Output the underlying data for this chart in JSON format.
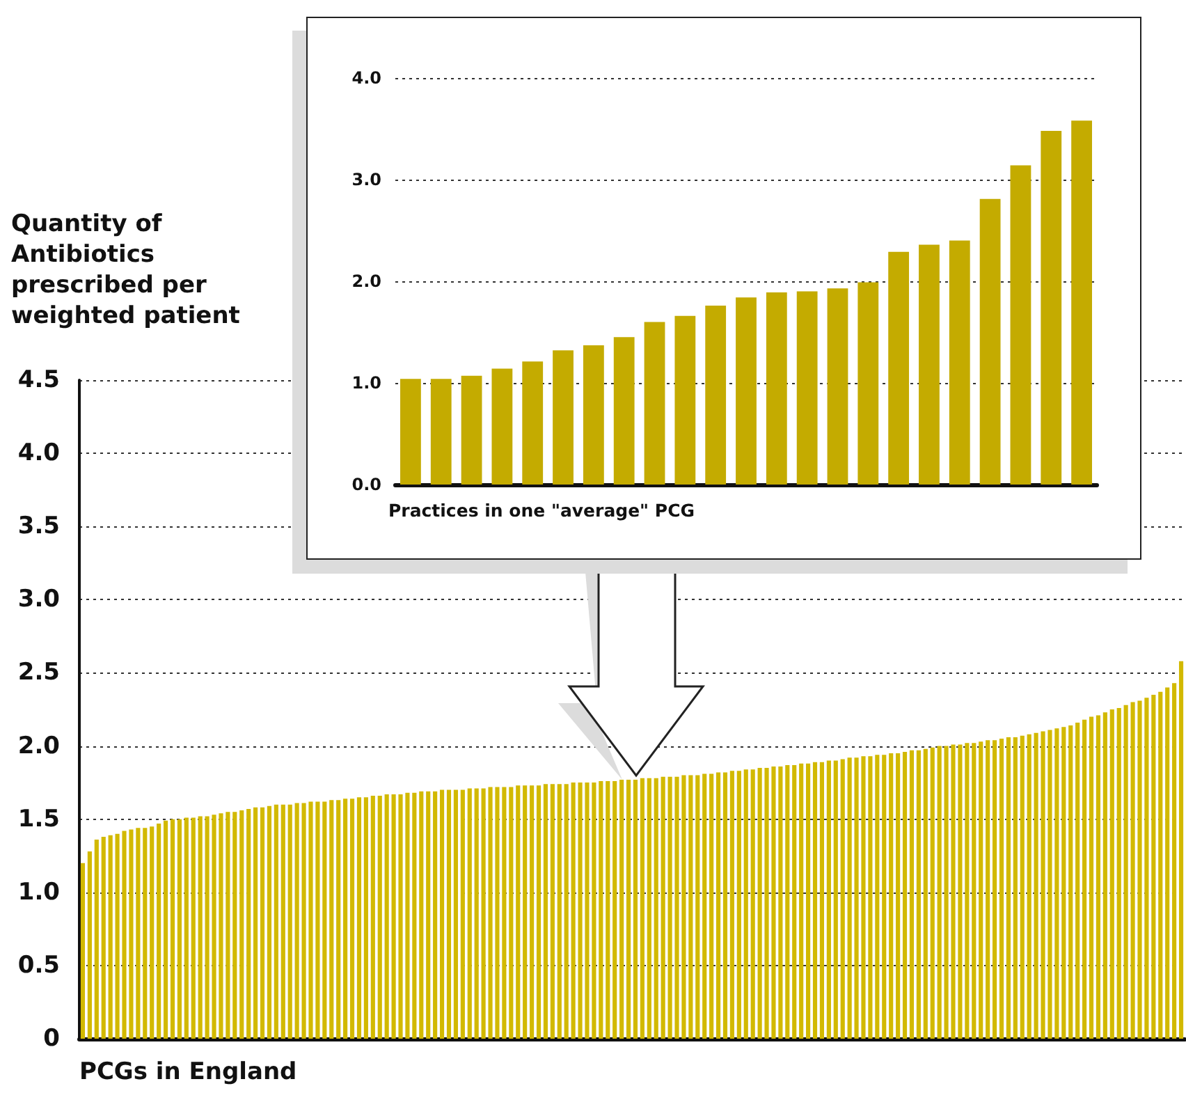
{
  "chart_data": [
    {
      "type": "bar",
      "ylabel": "Quantity of Antibiotics prescribed per weighted patient",
      "xlabel": "PCGs in England",
      "categories": [
        null,
        null,
        null,
        null,
        null,
        null,
        null,
        null,
        null,
        null,
        null,
        null,
        null,
        null,
        null,
        null,
        null,
        null,
        null,
        null,
        null,
        null,
        null,
        null,
        null,
        null,
        null,
        null,
        null,
        null,
        null,
        null,
        null,
        null,
        null,
        null,
        null,
        null,
        null,
        null,
        null,
        null,
        null,
        null,
        null,
        null,
        null,
        null,
        null,
        null,
        null,
        null,
        null,
        null,
        null,
        null,
        null,
        null,
        null,
        null,
        null,
        null,
        null,
        null,
        null,
        null,
        null,
        null,
        null,
        null,
        null,
        null,
        null,
        null,
        null,
        null,
        null,
        null,
        null,
        null,
        null,
        null,
        null,
        null,
        null,
        null,
        null,
        null,
        null,
        null,
        null,
        null,
        null,
        null,
        null,
        null,
        null,
        null,
        null,
        null,
        null,
        null,
        null,
        null,
        null,
        null,
        null,
        null,
        null,
        null,
        null,
        null,
        null,
        null,
        null,
        null,
        null,
        null,
        null,
        null,
        null,
        null,
        null,
        null,
        null,
        null,
        null,
        null,
        null,
        null,
        null,
        null,
        null,
        null,
        null,
        null,
        null,
        null,
        null,
        null,
        null,
        null,
        null,
        null,
        null,
        null,
        null,
        null,
        null,
        null,
        null,
        null,
        null,
        null,
        null,
        null,
        null,
        null,
        null,
        null
      ],
      "values": [
        1.2,
        1.28,
        1.36,
        1.38,
        1.39,
        1.4,
        1.42,
        1.43,
        1.44,
        1.44,
        1.45,
        1.47,
        1.49,
        1.5,
        1.5,
        1.51,
        1.51,
        1.52,
        1.52,
        1.53,
        1.54,
        1.55,
        1.55,
        1.56,
        1.57,
        1.58,
        1.58,
        1.59,
        1.6,
        1.6,
        1.6,
        1.61,
        1.61,
        1.62,
        1.62,
        1.62,
        1.63,
        1.63,
        1.64,
        1.64,
        1.65,
        1.65,
        1.66,
        1.66,
        1.67,
        1.67,
        1.67,
        1.68,
        1.68,
        1.69,
        1.69,
        1.69,
        1.7,
        1.7,
        1.7,
        1.7,
        1.71,
        1.71,
        1.71,
        1.72,
        1.72,
        1.72,
        1.72,
        1.73,
        1.73,
        1.73,
        1.73,
        1.74,
        1.74,
        1.74,
        1.74,
        1.75,
        1.75,
        1.75,
        1.75,
        1.76,
        1.76,
        1.76,
        1.77,
        1.77,
        1.77,
        1.78,
        1.78,
        1.78,
        1.79,
        1.79,
        1.79,
        1.8,
        1.8,
        1.8,
        1.81,
        1.81,
        1.82,
        1.82,
        1.83,
        1.83,
        1.84,
        1.84,
        1.85,
        1.85,
        1.86,
        1.86,
        1.87,
        1.87,
        1.88,
        1.88,
        1.89,
        1.89,
        1.9,
        1.9,
        1.91,
        1.92,
        1.92,
        1.93,
        1.93,
        1.94,
        1.94,
        1.95,
        1.95,
        1.96,
        1.97,
        1.97,
        1.98,
        1.99,
        2.0,
        2.0,
        2.01,
        2.01,
        2.02,
        2.02,
        2.03,
        2.04,
        2.04,
        2.05,
        2.06,
        2.06,
        2.07,
        2.08,
        2.09,
        2.1,
        2.11,
        2.12,
        2.13,
        2.14,
        2.16,
        2.18,
        2.2,
        2.21,
        2.23,
        2.25,
        2.26,
        2.28,
        2.3,
        2.31,
        2.33,
        2.35,
        2.37,
        2.4,
        2.43,
        2.58
      ],
      "color": "#d2b900",
      "ylim": [
        0,
        4.5
      ],
      "yticks": [
        0,
        {
          "value": 0.5,
          "label": "0.5"
        },
        {
          "value": 1,
          "label": "1.0"
        },
        {
          "value": 1.5,
          "label": "1.5"
        },
        {
          "value": 2,
          "label": "2.0"
        },
        {
          "value": 2.5,
          "label": "2.5"
        },
        {
          "value": 3,
          "label": "3.0"
        },
        {
          "value": 3.5,
          "label": "3.5"
        },
        {
          "value": 4,
          "label": "4.0"
        },
        {
          "value": 4.5,
          "label": "4.5"
        }
      ],
      "grid": "y",
      "tick_labels": "y"
    },
    {
      "type": "bar",
      "xlabel": "Practices in one \"average\" PCG",
      "categories": [
        null,
        null,
        null,
        null,
        null,
        null,
        null,
        null,
        null,
        null,
        null,
        null,
        null,
        null,
        null,
        null,
        null,
        null,
        null,
        null,
        null,
        null,
        null
      ],
      "values": [
        1.04,
        1.04,
        1.07,
        1.14,
        1.21,
        1.32,
        1.37,
        1.45,
        1.6,
        1.66,
        1.76,
        1.84,
        1.89,
        1.9,
        1.93,
        1.99,
        2.29,
        2.36,
        2.4,
        2.81,
        3.14,
        3.48,
        3.58
      ],
      "color": "#c4ab00",
      "ylim": [
        0,
        4
      ],
      "yticks": [
        {
          "value": 0,
          "label": "0.0"
        },
        {
          "value": 1,
          "label": "1.0"
        },
        {
          "value": 2,
          "label": "2.0"
        },
        {
          "value": 3,
          "label": "3.0"
        },
        {
          "value": 4,
          "label": "4.0"
        }
      ],
      "grid": "y",
      "tick_labels": "y"
    }
  ]
}
